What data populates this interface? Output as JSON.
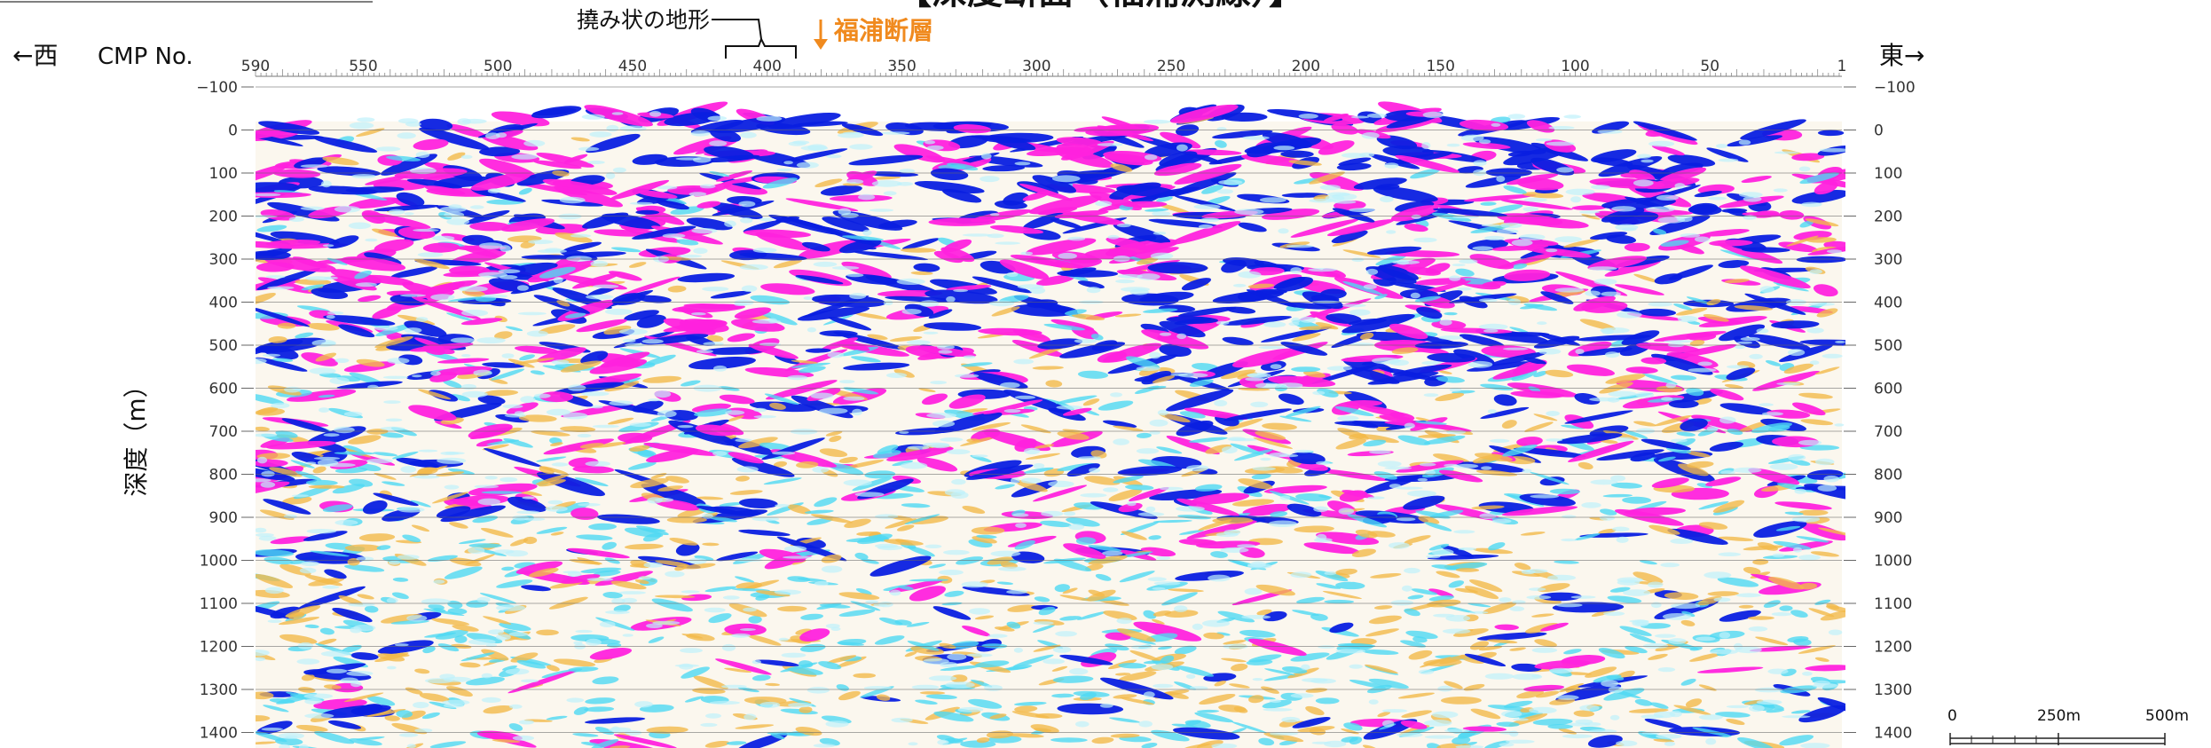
{
  "title": "【深度断面（福浦測線）】",
  "west_label": "←西",
  "east_label": "東→",
  "cmp_label": "CMP No.",
  "depth_axis_label": "深度（m）",
  "annotation_flexure": "撓み状の地形",
  "annotation_fault": "福浦断層",
  "cmp_ticks": [
    "590",
    "550",
    "500",
    "450",
    "400",
    "350",
    "300",
    "250",
    "200",
    "150",
    "100",
    "50",
    "1"
  ],
  "depth_ticks": [
    "−100",
    "0",
    "100",
    "200",
    "300",
    "400",
    "500",
    "600",
    "700",
    "800",
    "900",
    "1000",
    "1100",
    "1200",
    "1300",
    "1400"
  ],
  "scale_bar": {
    "labels": [
      "0",
      "250m",
      "500m"
    ]
  },
  "colors": {
    "positive": "#ff22dd",
    "negative": "#0a1fe0",
    "weak_positive": "#f2b94a",
    "weak_negative": "#4fd8f2",
    "annotation": "#f08a1e"
  },
  "cmp_range": [
    590,
    1
  ],
  "depth_range_m": [
    -100,
    1400
  ]
}
